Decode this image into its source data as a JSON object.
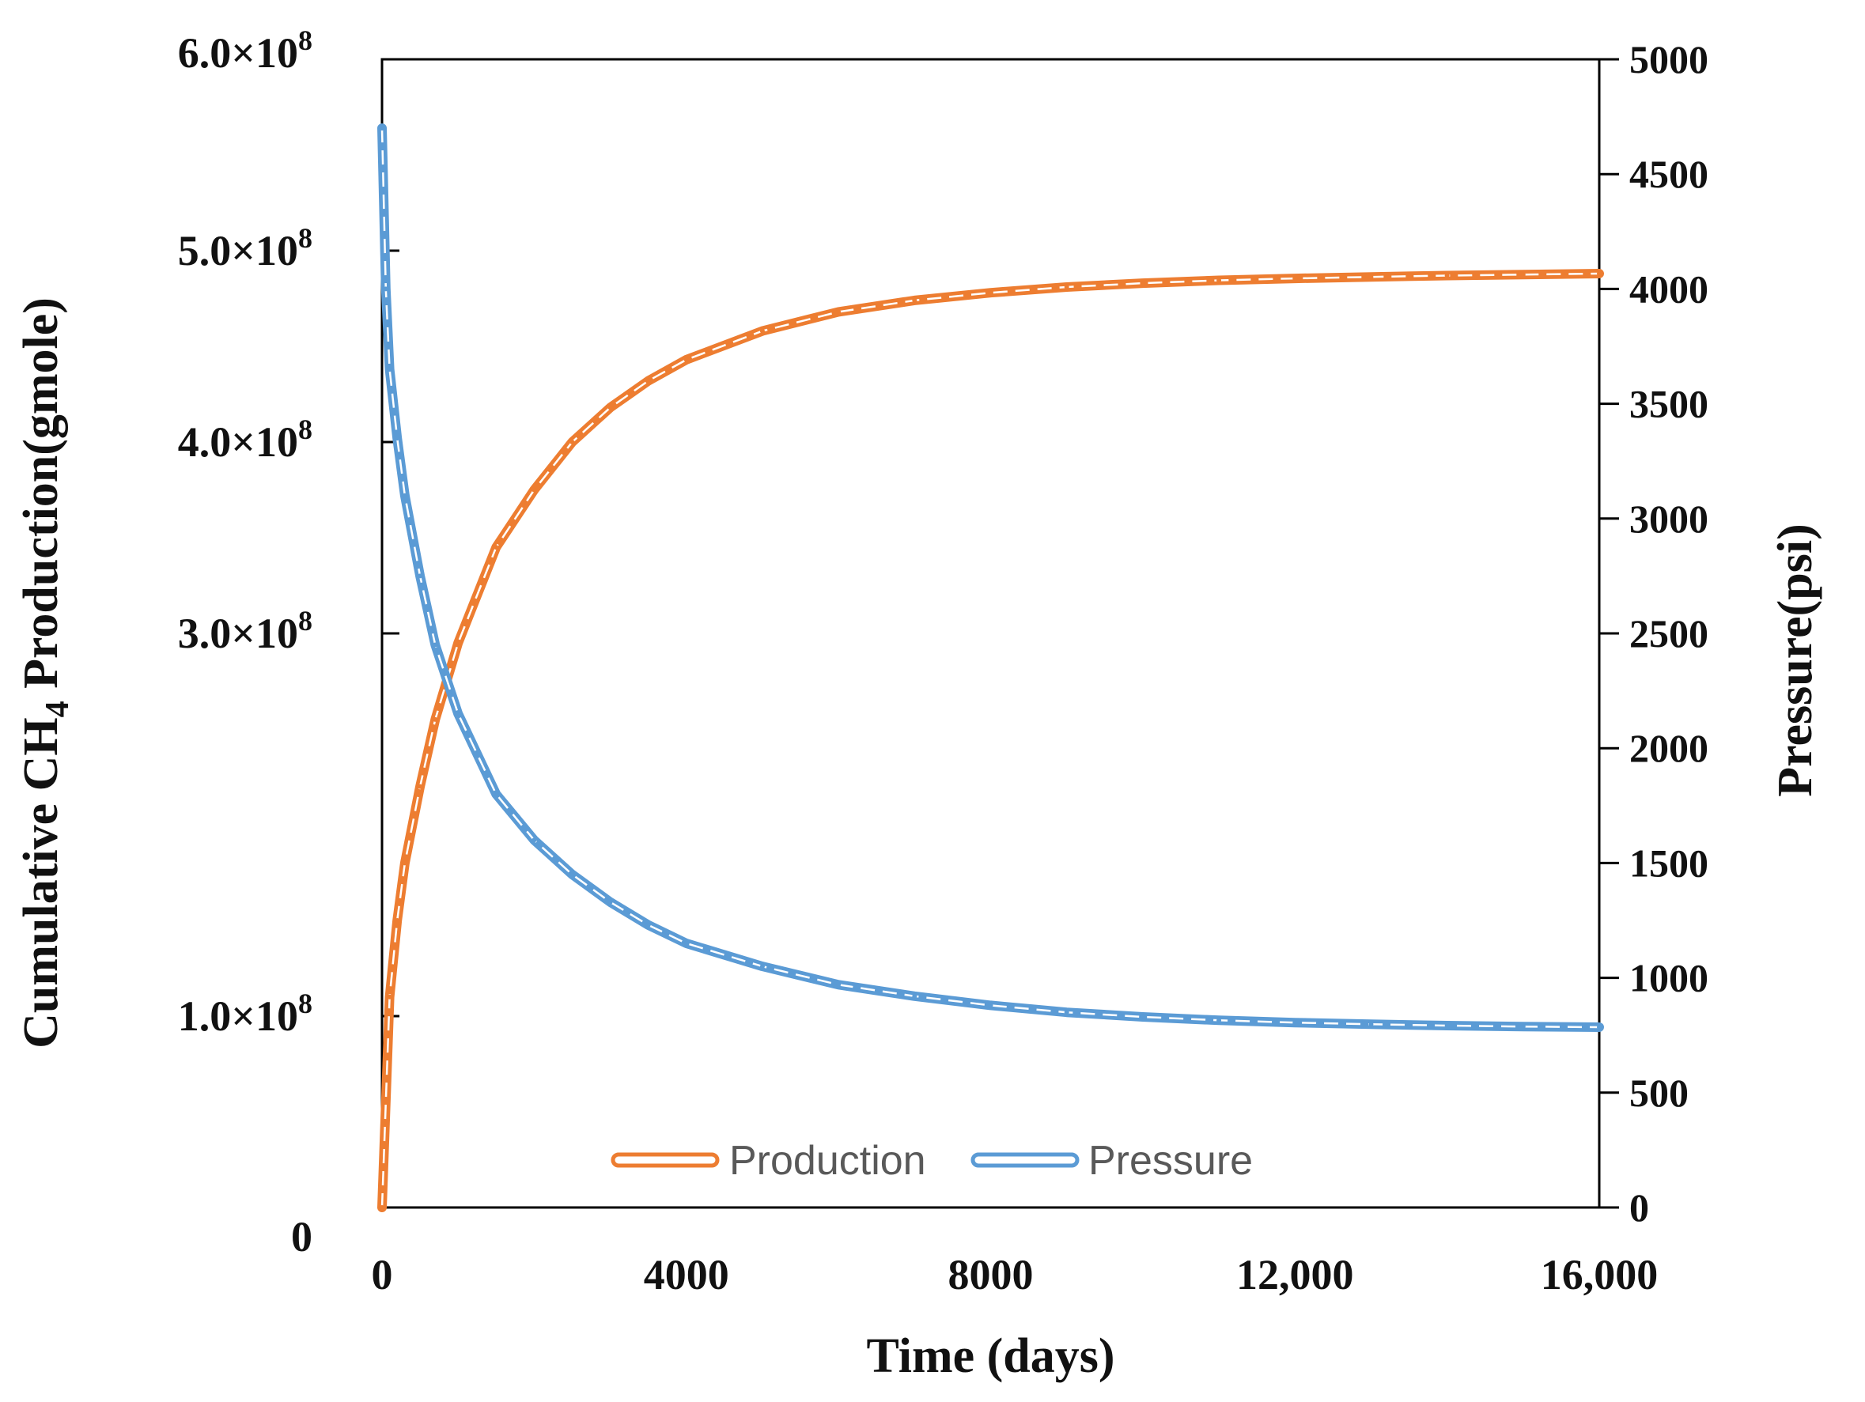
{
  "chart_data": {
    "type": "line",
    "title": "",
    "xlabel": "Time (days)",
    "ylabel_left": {
      "prefix": "Cumulative CH",
      "subscript": "4",
      "suffix": " Production(gmole)"
    },
    "ylabel_right": "Pressure(psi)",
    "xlim": [
      0,
      16000
    ],
    "ylim_left": [
      0,
      600000000
    ],
    "ylim_right": [
      0,
      5000
    ],
    "x_ticks": [
      {
        "value": 0,
        "label": "0"
      },
      {
        "value": 4000,
        "label": "4000"
      },
      {
        "value": 8000,
        "label": "8000"
      },
      {
        "value": 12000,
        "label": "12,000"
      },
      {
        "value": 16000,
        "label": "16,000"
      }
    ],
    "y_left_ticks": [
      {
        "value": 0,
        "mantissa": "0",
        "exp": ""
      },
      {
        "value": 100000000,
        "mantissa": "1.0×10",
        "exp": "8"
      },
      {
        "value": 300000000,
        "mantissa": "3.0×10",
        "exp": "8"
      },
      {
        "value": 400000000,
        "mantissa": "4.0×10",
        "exp": "8"
      },
      {
        "value": 500000000,
        "mantissa": "5.0×10",
        "exp": "8"
      },
      {
        "value": 600000000,
        "mantissa": "6.0×10",
        "exp": "8"
      }
    ],
    "y_right_ticks": [
      {
        "value": 0,
        "label": "0"
      },
      {
        "value": 500,
        "label": "500"
      },
      {
        "value": 1000,
        "label": "1000"
      },
      {
        "value": 1500,
        "label": "1500"
      },
      {
        "value": 2000,
        "label": "2000"
      },
      {
        "value": 2500,
        "label": "2500"
      },
      {
        "value": 3000,
        "label": "3000"
      },
      {
        "value": 3500,
        "label": "3500"
      },
      {
        "value": 4000,
        "label": "4000"
      },
      {
        "value": 4500,
        "label": "4500"
      },
      {
        "value": 5000,
        "label": "5000"
      }
    ],
    "legend": {
      "position": "bottom-center",
      "entries": [
        "Production",
        "Pressure"
      ]
    },
    "series": [
      {
        "name": "Production",
        "axis": "left",
        "color": "#ED7D31",
        "x": [
          0,
          100,
          200,
          300,
          500,
          700,
          1000,
          1500,
          2000,
          2500,
          3000,
          3500,
          4000,
          5000,
          6000,
          7000,
          8000,
          9000,
          10000,
          11000,
          12000,
          13000,
          14000,
          15000,
          16000
        ],
        "y": [
          0,
          110000000,
          150000000,
          180000000,
          220000000,
          255000000,
          295000000,
          345000000,
          375000000,
          400000000,
          418000000,
          432000000,
          443000000,
          458000000,
          468000000,
          474000000,
          478000000,
          481000000,
          483000000,
          484500000,
          485500000,
          486300000,
          487000000,
          487500000,
          488000000
        ]
      },
      {
        "name": "Pressure",
        "axis": "right",
        "color": "#5B9BD5",
        "x": [
          0,
          50,
          100,
          200,
          300,
          500,
          700,
          1000,
          1500,
          2000,
          2500,
          3000,
          3500,
          4000,
          5000,
          6000,
          7000,
          8000,
          9000,
          10000,
          11000,
          12000,
          13000,
          14000,
          15000,
          16000
        ],
        "y": [
          4700,
          4000,
          3650,
          3350,
          3100,
          2750,
          2450,
          2150,
          1800,
          1600,
          1450,
          1330,
          1230,
          1150,
          1050,
          970,
          920,
          880,
          850,
          830,
          815,
          805,
          798,
          792,
          788,
          785
        ]
      }
    ]
  }
}
